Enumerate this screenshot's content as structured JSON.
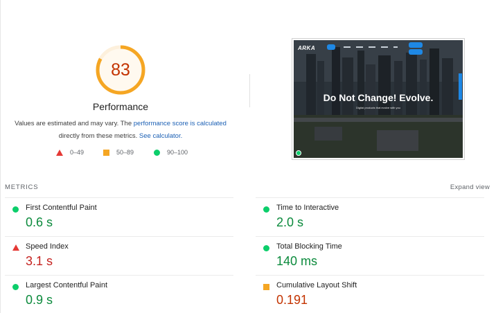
{
  "summary": {
    "score": "83",
    "category": "Performance",
    "note_prefix": "Values are estimated and may vary. The",
    "note_link1": "performance score is calculated",
    "note_middle": "directly from these metrics.",
    "note_link2": "See calculator."
  },
  "legend": [
    {
      "shape": "triangle",
      "color": "#e53935",
      "label": "0–49"
    },
    {
      "shape": "square",
      "color": "#f5a623",
      "label": "50–89"
    },
    {
      "shape": "circle",
      "color": "#0cce6b",
      "label": "90–100"
    }
  ],
  "colors": {
    "gauge_arc": "#f5a623",
    "gauge_track": "#fdf0dc",
    "gauge_text": "#c33300",
    "good": "#0b8a3c",
    "poor": "#c5221f",
    "average": "#c33300",
    "link": "#1a5fb4"
  },
  "screenshot": {
    "logo": "ARKA",
    "headline": "Do Not Change! Evolve.",
    "subheadline": "Digital products that evolve with you"
  },
  "metrics_section": {
    "title": "METRICS",
    "expand_label": "Expand view"
  },
  "metrics": [
    {
      "name": "First Contentful Paint",
      "value": "0.6 s",
      "rating": "good"
    },
    {
      "name": "Time to Interactive",
      "value": "2.0 s",
      "rating": "good"
    },
    {
      "name": "Speed Index",
      "value": "3.1 s",
      "rating": "poor"
    },
    {
      "name": "Total Blocking Time",
      "value": "140 ms",
      "rating": "good"
    },
    {
      "name": "Largest Contentful Paint",
      "value": "0.9 s",
      "rating": "good"
    },
    {
      "name": "Cumulative Layout Shift",
      "value": "0.191",
      "rating": "average"
    }
  ]
}
